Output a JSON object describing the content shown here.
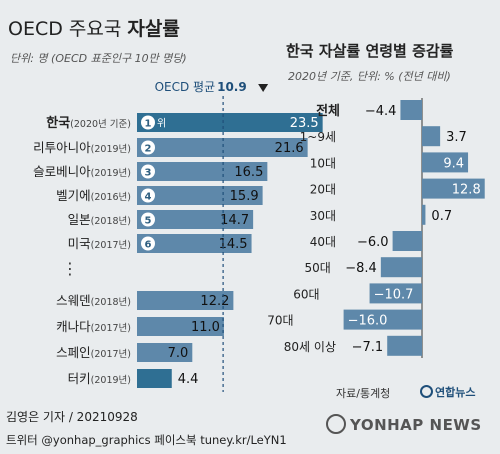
{
  "left_title": {
    "prefix": "OECD 주요국 ",
    "bold": "자살률"
  },
  "left_unit": "단위: 명 (OECD 표준인구 10만 명당)",
  "right_title": "한국 자살률 연령별 증감률",
  "right_unit": "2020년 기준, 단위: % (전년 대비)",
  "source": "자료/통계청",
  "agency_logo": "연합뉴스",
  "byline": "김영은 기자 / 20210928",
  "social": "트위터 @yonhap_graphics  페이스북 tuney.kr/LeYN1",
  "watermark": "YONHAP NEWS",
  "colors": {
    "korea": "#2f6f93",
    "bar": "#5e88aa",
    "turkey": "#2f6f93",
    "right_bar": "#5e88aa",
    "average_line": "#1f4f7a"
  },
  "chart_data": [
    {
      "type": "bar",
      "orientation": "horizontal",
      "title": "OECD 주요국 자살률",
      "categories": [
        {
          "name": "한국",
          "year": "(2020년 기준)",
          "rank": "1",
          "rank_suffix": "위"
        },
        {
          "name": "리투아니아",
          "year": "(2019년)",
          "rank": "2"
        },
        {
          "name": "슬로베니아",
          "year": "(2019년)",
          "rank": "3"
        },
        {
          "name": "벨기에",
          "year": "(2016년)",
          "rank": "4"
        },
        {
          "name": "일본",
          "year": "(2018년)",
          "rank": "5"
        },
        {
          "name": "미국",
          "year": "(2017년)",
          "rank": "6"
        },
        {
          "name": "스웨덴",
          "year": "(2018년)"
        },
        {
          "name": "캐나다",
          "year": "(2017년)"
        },
        {
          "name": "스페인",
          "year": "(2017년)"
        },
        {
          "name": "터키",
          "year": "(2019년)"
        }
      ],
      "values": [
        23.5,
        21.6,
        16.5,
        15.9,
        14.7,
        14.5,
        12.2,
        11.0,
        7.0,
        4.4
      ],
      "value_labels": [
        "23.5",
        "21.6",
        "16.5",
        "15.9",
        "14.7",
        "14.5",
        "12.2",
        "11.0",
        "7.0",
        "4.4"
      ],
      "gap_marker": "⋮",
      "average": {
        "label": "OECD 평균",
        "value": 10.9,
        "value_label": "10.9"
      }
    },
    {
      "type": "bar",
      "orientation": "horizontal",
      "title": "한국 자살률 연령별 증감률",
      "categories": [
        "전체",
        "1~9세",
        "10대",
        "20대",
        "30대",
        "40대",
        "50대",
        "60대",
        "70대",
        "80세 이상"
      ],
      "values": [
        -4.4,
        3.7,
        9.4,
        12.8,
        0.7,
        -6.0,
        -8.4,
        -10.7,
        -16.0,
        -7.1
      ],
      "value_labels": [
        "−4.4",
        "3.7",
        "9.4",
        "12.8",
        "0.7",
        "−6.0",
        "−8.4",
        "−10.7",
        "−16.0",
        "−7.1"
      ]
    }
  ]
}
